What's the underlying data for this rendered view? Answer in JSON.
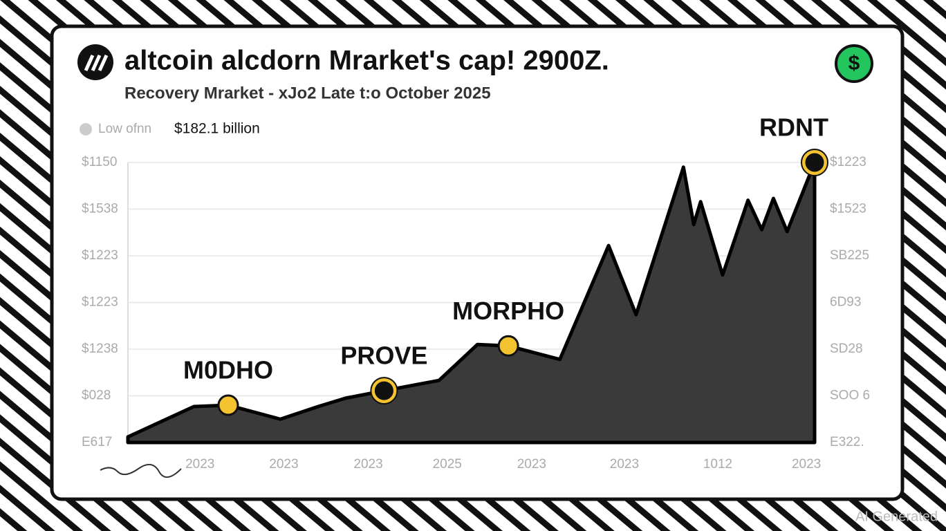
{
  "chart_data": {
    "type": "area",
    "title": "altcoin alcdorn Mrarket's cap! 2900Z.",
    "subtitle": "Recovery Mrarket -  xJo2  Late  t:o October 2025",
    "icon_label": "$",
    "legend": {
      "name": "Low ofnn",
      "value": "$182.1 billion",
      "color": "#cccccc"
    },
    "watermark": "AI Generated",
    "x": [
      0,
      9.6,
      14.6,
      22.2,
      27.7,
      31.7,
      37.3,
      45.3,
      50.9,
      55.4,
      62.9,
      70,
      74,
      80.9,
      82.4,
      83.4,
      86.6,
      90.3,
      92.3,
      94,
      96,
      100
    ],
    "series": [
      {
        "color": "#3a3a3a",
        "values": [
          0.12,
          0.77,
          0.8,
          0.5,
          0.77,
          0.95,
          1.11,
          1.33,
          2.1,
          2.07,
          1.78,
          4.22,
          2.74,
          5.9,
          4.67,
          5.16,
          3.59,
          5.19,
          4.56,
          5.23,
          4.52,
          6.0
        ]
      }
    ],
    "xlim": [
      0,
      100
    ],
    "xticks": [
      {
        "value": 10.5,
        "label": "2023"
      },
      {
        "value": 22.7,
        "label": "2023"
      },
      {
        "value": 35,
        "label": "2023"
      },
      {
        "value": 46.5,
        "label": "2025"
      },
      {
        "value": 58.8,
        "label": "2023"
      },
      {
        "value": 72.3,
        "label": "2023"
      },
      {
        "value": 85.9,
        "label": "1012"
      },
      {
        "value": 98.8,
        "label": "2023"
      }
    ],
    "ylim": [
      0,
      6
    ],
    "yticks": [
      {
        "value": 0,
        "label": "E617"
      },
      {
        "value": 1,
        "label": "$028"
      },
      {
        "value": 2,
        "label": "$1238"
      },
      {
        "value": 3,
        "label": "$1223"
      },
      {
        "value": 4,
        "label": "$1223"
      },
      {
        "value": 5,
        "label": "$1538"
      },
      {
        "value": 6,
        "label": "$1150"
      }
    ],
    "y2lim": [
      0,
      6
    ],
    "y2ticks": [
      {
        "value": 0,
        "label": "E322."
      },
      {
        "value": 1,
        "label": "SOO 6"
      },
      {
        "value": 2,
        "label": "SD28"
      },
      {
        "value": 3,
        "label": "6D93"
      },
      {
        "value": 4,
        "label": "SB225"
      },
      {
        "value": 5,
        "label": "$1523"
      },
      {
        "value": 6,
        "label": "$1223"
      }
    ],
    "grid": true,
    "annotations": [
      {
        "label": "M0DHO",
        "index": 2,
        "marker": "filled"
      },
      {
        "label": "PROVE",
        "index": 6,
        "marker": "ring"
      },
      {
        "label": "MORPHO",
        "index": 9,
        "marker": "filled"
      },
      {
        "label": "RDNT",
        "index": 21,
        "marker": "ring"
      }
    ]
  }
}
